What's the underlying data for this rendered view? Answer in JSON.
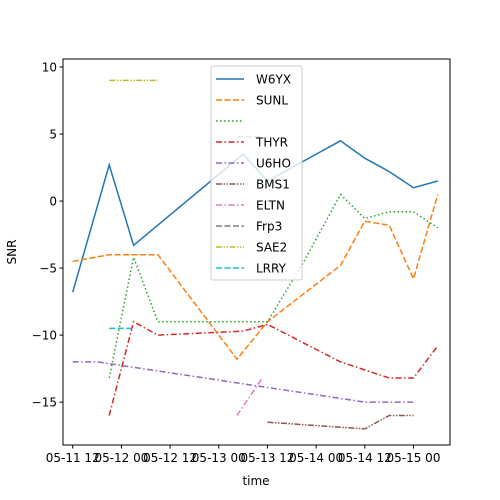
{
  "chart_data": {
    "type": "line",
    "title": "",
    "xlabel": "time",
    "ylabel": "SNR",
    "x_ticks": [
      "05-11 12",
      "05-12 00",
      "05-12 12",
      "05-13 00",
      "05-13 12",
      "05-14 00",
      "05-14 12",
      "05-15 00"
    ],
    "y_ticks": [
      "10",
      "5",
      "0",
      "−5",
      "−10",
      "−15"
    ],
    "xlim": [
      -0.8,
      31
    ],
    "ylim": [
      -18.2,
      10.6
    ],
    "grid": false,
    "legend_placement": "upper-center",
    "series": [
      {
        "name": "W6YX",
        "color": "#1f77b4",
        "dash": "solid",
        "points": [
          [
            0,
            -6.8
          ],
          [
            3,
            2.7
          ],
          [
            5,
            -3.3
          ],
          [
            14,
            3.5
          ],
          [
            16,
            1.5
          ],
          [
            19,
            3
          ],
          [
            22,
            4.5
          ],
          [
            24,
            3.2
          ],
          [
            26,
            2.2
          ],
          [
            28,
            1
          ],
          [
            30,
            1.5
          ]
        ]
      },
      {
        "name": "SUNL",
        "color": "#ff7f0e",
        "dash": "dashed",
        "points": [
          [
            0,
            -4.5
          ],
          [
            3,
            -4
          ],
          [
            7,
            -4
          ],
          [
            13.5,
            -11.8
          ],
          [
            16,
            -9
          ],
          [
            22,
            -4.8
          ],
          [
            24,
            -1.5
          ],
          [
            26,
            -1.8
          ],
          [
            28,
            -5.8
          ],
          [
            30,
            0.5
          ]
        ]
      },
      {
        "name": "",
        "color": "#2ca02c",
        "dash": "dotted",
        "points": [
          [
            3,
            -13.2
          ],
          [
            5,
            -4.2
          ],
          [
            7,
            -9
          ],
          [
            16,
            -9
          ],
          [
            19,
            -4.5
          ],
          [
            22,
            0.5
          ],
          [
            24,
            -1.3
          ],
          [
            26,
            -0.8
          ],
          [
            28,
            -0.8
          ],
          [
            30,
            -2
          ]
        ]
      },
      {
        "name": "THYR",
        "color": "#d62728",
        "dash": "dashdot",
        "points": [
          [
            3,
            -16
          ],
          [
            5,
            -9
          ],
          [
            7,
            -10
          ],
          [
            14,
            -9.7
          ],
          [
            16,
            -9.2
          ],
          [
            22,
            -12
          ],
          [
            26,
            -13.2
          ],
          [
            28,
            -13.2
          ],
          [
            30,
            -10.8
          ]
        ]
      },
      {
        "name": "U6HO",
        "color": "#9467bd",
        "dash": "dashdot",
        "points": [
          [
            0,
            -12
          ],
          [
            2,
            -12
          ],
          [
            5,
            -12.4
          ],
          [
            24,
            -15
          ],
          [
            28,
            -15
          ]
        ]
      },
      {
        "name": "BMS1",
        "color": "#8c564b",
        "dash": "dashdot2",
        "points": [
          [
            16,
            -16.5
          ],
          [
            24,
            -17
          ],
          [
            26,
            -16
          ],
          [
            28,
            -16
          ]
        ]
      },
      {
        "name": "ELTN",
        "color": "#e377c2",
        "dash": "dashdot",
        "points": [
          [
            13.5,
            -16
          ],
          [
            15.5,
            -13.3
          ]
        ]
      },
      {
        "name": "Frp3",
        "color": "#7f7f7f",
        "dash": "dashed",
        "points": [
          [
            13.5,
            4.8
          ],
          [
            15.5,
            4.8
          ]
        ]
      },
      {
        "name": "SAE2",
        "color": "#bcbd22",
        "dash": "dashdot2",
        "points": [
          [
            3,
            9
          ],
          [
            7,
            9
          ]
        ]
      },
      {
        "name": "LRRY",
        "color": "#17becf",
        "dash": "dashed",
        "points": [
          [
            3,
            -9.5
          ],
          [
            5,
            -9.5
          ]
        ]
      }
    ]
  }
}
